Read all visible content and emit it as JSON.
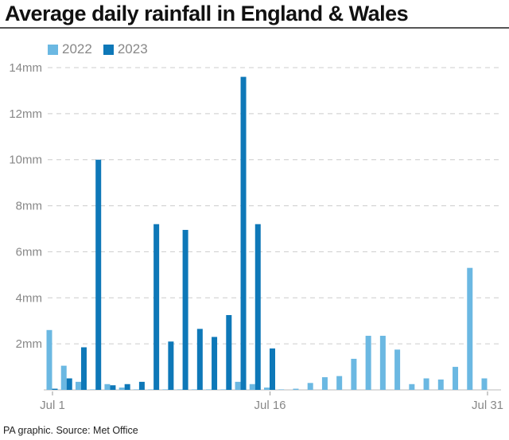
{
  "chart_data": {
    "type": "bar",
    "title": "Average daily rainfall in England & Wales",
    "source": "PA graphic. Source: Met Office",
    "x_tick_labels": [
      "Jul 1",
      "Jul 16",
      "Jul 31"
    ],
    "y_tick_labels": [
      "2mm",
      "4mm",
      "6mm",
      "8mm",
      "10mm",
      "12mm",
      "14mm"
    ],
    "ylim": [
      0,
      14
    ],
    "grid": true,
    "legend_position": "top-left",
    "categories": [
      1,
      2,
      3,
      4,
      5,
      6,
      7,
      8,
      9,
      10,
      11,
      12,
      13,
      14,
      15,
      16,
      17,
      18,
      19,
      20,
      21,
      22,
      23,
      24,
      25,
      26,
      27,
      28,
      29,
      30,
      31
    ],
    "series": [
      {
        "name": "2022",
        "color": "#6bb8e2",
        "values": [
          2.6,
          1.05,
          0.35,
          0.02,
          0.25,
          0.1,
          0,
          0,
          0,
          0,
          0.02,
          0,
          0.02,
          0.35,
          0.25,
          0.1,
          0.02,
          0.05,
          0.3,
          0.55,
          0.6,
          1.35,
          2.35,
          2.35,
          1.75,
          0.25,
          0.5,
          0.45,
          1.0,
          5.3,
          0.5
        ]
      },
      {
        "name": "2023",
        "color": "#0e78b8",
        "values": [
          0.05,
          0.5,
          1.85,
          10.0,
          0.2,
          0.25,
          0.35,
          7.2,
          2.1,
          6.95,
          2.65,
          2.3,
          3.25,
          13.6,
          7.2,
          1.8,
          null,
          null,
          null,
          null,
          null,
          null,
          null,
          null,
          null,
          null,
          null,
          null,
          null,
          null,
          null
        ]
      }
    ]
  }
}
